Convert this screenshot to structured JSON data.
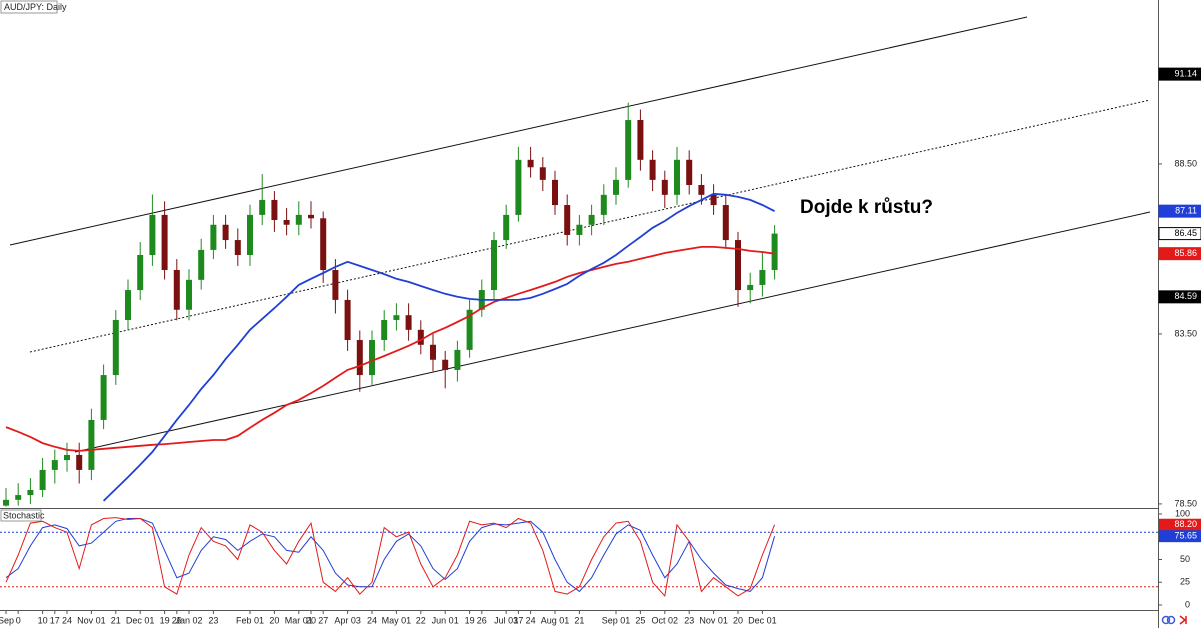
{
  "chart_data": {
    "type": "candlestick",
    "title": "AUD/JPY: Daily",
    "annotation": "Dojde k růstu?",
    "categories": [
      "Sep",
      "0",
      null,
      "10",
      "17",
      "24",
      null,
      "Nov 01",
      null,
      "21",
      null,
      "Dec 01",
      null,
      "19",
      "26",
      "Jan 02",
      null,
      "23",
      null,
      null,
      "Feb 01",
      null,
      "20",
      null,
      "Mar 01",
      "20",
      "27",
      null,
      "Apr 03",
      null,
      "24",
      null,
      "May 01",
      null,
      "22",
      null,
      "Jun 01",
      null,
      "19",
      "26",
      null,
      "Jul 03",
      "17",
      "24",
      null,
      "Aug 01",
      null,
      "21",
      null,
      null,
      "Sep 01",
      null,
      "25",
      null,
      "Oct 02",
      null,
      "23",
      null,
      "Nov 01",
      null,
      "20",
      null,
      "Dec 01",
      null
    ],
    "open": [
      78.45,
      78.62,
      78.76,
      78.91,
      79.5,
      79.79,
      79.94,
      79.5,
      80.97,
      82.29,
      83.91,
      84.79,
      85.82,
      87.0,
      85.38,
      84.21,
      85.09,
      85.97,
      86.71,
      86.26,
      85.82,
      87.0,
      87.44,
      86.85,
      86.71,
      87.0,
      86.9,
      85.38,
      84.5,
      83.32,
      82.29,
      83.32,
      83.91,
      84.05,
      83.62,
      83.18,
      82.74,
      82.44,
      83.03,
      84.21,
      84.79,
      86.26,
      87.0,
      88.62,
      88.4,
      88.03,
      87.29,
      86.41,
      86.71,
      87.0,
      87.59,
      88.03,
      89.79,
      88.62,
      88.03,
      87.59,
      88.62,
      87.88,
      87.59,
      87.29,
      86.26,
      84.79,
      84.94,
      85.38
    ],
    "high": [
      78.97,
      79.11,
      79.26,
      79.85,
      80.1,
      80.3,
      80.3,
      81.3,
      82.6,
      84.2,
      85.1,
      86.2,
      87.6,
      87.4,
      85.7,
      85.4,
      86.3,
      87.0,
      87.0,
      86.6,
      87.3,
      88.2,
      87.7,
      87.2,
      87.4,
      87.4,
      87.1,
      85.7,
      84.8,
      83.6,
      83.6,
      84.2,
      84.4,
      84.4,
      83.9,
      83.5,
      83.0,
      83.3,
      84.5,
      85.1,
      86.5,
      87.3,
      89.0,
      89.0,
      88.7,
      88.3,
      87.6,
      87.0,
      87.3,
      87.9,
      88.4,
      90.3,
      90.1,
      88.9,
      88.3,
      89.0,
      88.9,
      88.2,
      87.9,
      87.6,
      86.5,
      85.3,
      85.9,
      86.7
    ],
    "low": [
      78.42,
      78.45,
      78.5,
      78.7,
      79.1,
      79.45,
      79.1,
      79.2,
      80.7,
      82.0,
      83.6,
      84.5,
      85.5,
      85.1,
      83.9,
      83.9,
      84.8,
      85.7,
      86.0,
      85.5,
      85.5,
      86.7,
      86.5,
      86.4,
      86.4,
      86.6,
      85.0,
      84.1,
      83.0,
      81.8,
      82.0,
      83.0,
      83.6,
      83.3,
      82.9,
      82.4,
      81.9,
      82.1,
      82.8,
      84.0,
      84.5,
      86.0,
      86.8,
      88.1,
      87.7,
      87.0,
      86.1,
      86.1,
      86.4,
      86.7,
      87.3,
      87.8,
      88.3,
      87.7,
      87.2,
      87.3,
      87.6,
      87.3,
      87.0,
      86.0,
      84.3,
      84.4,
      84.6,
      85.1
    ],
    "close": [
      78.62,
      78.76,
      78.91,
      79.5,
      79.79,
      79.94,
      79.5,
      80.97,
      82.29,
      83.91,
      84.79,
      85.82,
      87.0,
      85.38,
      84.21,
      85.09,
      85.97,
      86.71,
      86.26,
      85.82,
      87.0,
      87.44,
      86.85,
      86.71,
      87.0,
      86.9,
      85.38,
      84.5,
      83.32,
      82.29,
      83.32,
      83.91,
      84.05,
      83.62,
      83.18,
      82.74,
      82.44,
      83.03,
      84.21,
      84.79,
      86.26,
      87.0,
      88.62,
      88.4,
      88.03,
      87.29,
      86.41,
      86.71,
      87.0,
      87.59,
      88.03,
      89.79,
      88.62,
      88.03,
      87.59,
      88.62,
      87.88,
      87.59,
      87.29,
      86.26,
      84.79,
      84.94,
      85.38,
      86.45
    ],
    "up_color": "#1e8a1e",
    "down_color": "#7a1010",
    "overlays": [
      {
        "color": "#e31a1a",
        "values": [
          80.76,
          80.62,
          80.47,
          80.29,
          80.18,
          80.09,
          80.06,
          80.09,
          80.12,
          80.15,
          80.18,
          80.21,
          80.24,
          80.26,
          80.29,
          80.32,
          80.35,
          80.38,
          80.38,
          80.5,
          80.74,
          80.97,
          81.18,
          81.41,
          81.56,
          81.76,
          81.97,
          82.21,
          82.44,
          82.56,
          82.71,
          82.85,
          83.0,
          83.15,
          83.32,
          83.53,
          83.68,
          83.85,
          84.03,
          84.26,
          84.44,
          84.56,
          84.68,
          84.79,
          84.91,
          85.03,
          85.18,
          85.29,
          85.38,
          85.47,
          85.56,
          85.62,
          85.71,
          85.79,
          85.88,
          85.94,
          86.0,
          86.06,
          86.06,
          86.03,
          86.0,
          85.94,
          85.91,
          85.86
        ]
      },
      {
        "color": "#1f3fd6",
        "values": [
          null,
          null,
          null,
          null,
          null,
          null,
          null,
          null,
          78.59,
          78.94,
          79.29,
          79.65,
          80.03,
          80.5,
          80.97,
          81.41,
          81.88,
          82.29,
          82.76,
          83.18,
          83.62,
          83.94,
          84.26,
          84.59,
          84.94,
          85.12,
          85.29,
          85.47,
          85.62,
          85.5,
          85.38,
          85.26,
          85.12,
          85.03,
          84.91,
          84.79,
          84.68,
          84.59,
          84.53,
          84.5,
          84.5,
          84.5,
          84.5,
          84.56,
          84.68,
          84.82,
          84.97,
          85.21,
          85.41,
          85.59,
          85.82,
          86.09,
          86.35,
          86.62,
          86.82,
          87.06,
          87.26,
          87.44,
          87.62,
          87.59,
          87.53,
          87.44,
          87.29,
          87.11
        ]
      }
    ],
    "ylim": [
      78.38,
      93.32
    ],
    "yticks": [
      {
        "value": 78.5,
        "label": "78.50"
      },
      {
        "value": 83.5,
        "label": "83.50"
      },
      {
        "value": 88.5,
        "label": "88.50"
      }
    ],
    "price_tags": [
      {
        "value": 91.14,
        "bg": "#000000",
        "fg": "#ffffff"
      },
      {
        "value": 87.11,
        "bg": "#1f3fd6",
        "fg": "#ffffff"
      },
      {
        "value": 86.45,
        "bg": "#ffffff",
        "fg": "#000000"
      },
      {
        "value": 85.86,
        "bg": "#e31a1a",
        "fg": "#ffffff"
      },
      {
        "value": 84.59,
        "bg": "#000000",
        "fg": "#ffffff"
      }
    ],
    "stochastic": {
      "title": "Stochastic",
      "k": {
        "color": "#e31a1a",
        "values": [
          25,
          55,
          90,
          92,
          85,
          80,
          40,
          88,
          95,
          96,
          94,
          95,
          85,
          20,
          12,
          55,
          85,
          70,
          65,
          50,
          88,
          80,
          60,
          45,
          70,
          90,
          25,
          15,
          30,
          12,
          25,
          85,
          75,
          80,
          45,
          20,
          30,
          55,
          92,
          88,
          90,
          85,
          95,
          90,
          60,
          15,
          12,
          20,
          50,
          75,
          90,
          92,
          70,
          25,
          10,
          88,
          70,
          15,
          30,
          20,
          10,
          18,
          55,
          88.2
        ]
      },
      "d": {
        "color": "#1f3fd6",
        "values": [
          30,
          40,
          65,
          85,
          88,
          84,
          65,
          68,
          80,
          92,
          95,
          95,
          90,
          60,
          30,
          35,
          60,
          75,
          72,
          60,
          70,
          78,
          75,
          60,
          58,
          75,
          60,
          35,
          22,
          20,
          20,
          50,
          70,
          78,
          65,
          40,
          28,
          40,
          70,
          85,
          89,
          88,
          90,
          92,
          80,
          50,
          25,
          15,
          30,
          55,
          78,
          88,
          82,
          55,
          30,
          45,
          70,
          50,
          35,
          22,
          18,
          15,
          30,
          75.65
        ]
      },
      "ylim": [
        0,
        100
      ],
      "yticks": [
        0,
        25,
        50,
        100
      ],
      "levels": [
        {
          "value": 80,
          "color": "#1f3fd6"
        },
        {
          "value": 20,
          "color": "#e31a1a"
        }
      ],
      "tags": [
        {
          "value": 88.2,
          "label": "88.20",
          "bg": "#e31a1a"
        },
        {
          "value": 75.65,
          "label": "75.65",
          "bg": "#1f3fd6"
        }
      ]
    }
  }
}
